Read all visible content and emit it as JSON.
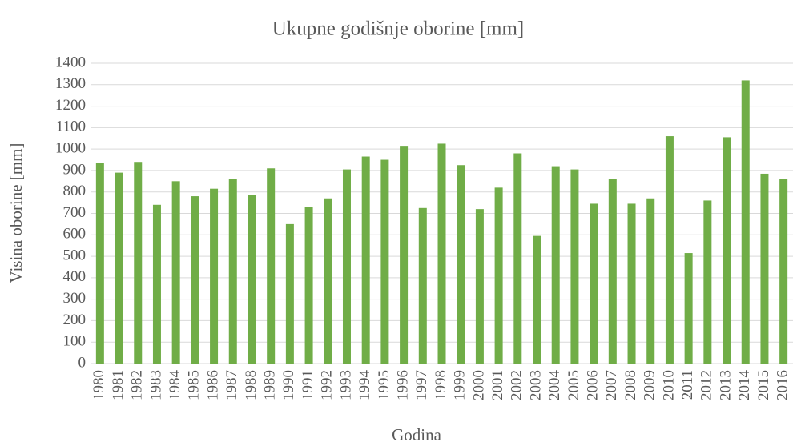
{
  "chart_data": {
    "type": "bar",
    "title": "Ukupne godišnje oborine [mm]",
    "x_label": "Godina",
    "y_label": "Visina oborine [mm]",
    "categories": [
      "1980",
      "1981",
      "1982",
      "1983",
      "1984",
      "1985",
      "1986",
      "1987",
      "1988",
      "1989",
      "1990",
      "1991",
      "1992",
      "1993",
      "1994",
      "1995",
      "1996",
      "1997",
      "1998",
      "1999",
      "2000",
      "2001",
      "2002",
      "2003",
      "2004",
      "2005",
      "2006",
      "2007",
      "2008",
      "2009",
      "2010",
      "2011",
      "2012",
      "2013",
      "2014",
      "2015",
      "2016"
    ],
    "values": [
      935,
      890,
      940,
      740,
      850,
      780,
      815,
      860,
      785,
      910,
      650,
      730,
      770,
      905,
      965,
      950,
      1015,
      725,
      1025,
      925,
      720,
      820,
      980,
      595,
      920,
      905,
      745,
      860,
      745,
      770,
      1060,
      515,
      760,
      1055,
      1320,
      885,
      860
    ],
    "color": "#70ad47",
    "ylim": [
      0,
      1400
    ],
    "yticks": [
      0,
      100,
      200,
      300,
      400,
      500,
      600,
      700,
      800,
      900,
      1000,
      1100,
      1200,
      1300,
      1400
    ],
    "grid": true
  }
}
